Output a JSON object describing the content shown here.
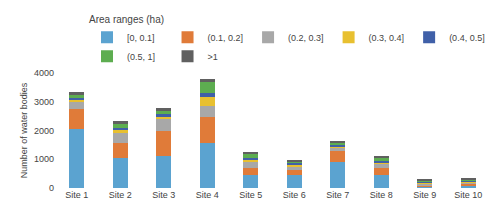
{
  "chart_data": {
    "type": "bar",
    "stacked": true,
    "categories": [
      "Site 1",
      "Site 2",
      "Site 3",
      "Site 4",
      "Site 5",
      "Site 6",
      "Site 7",
      "Site 8",
      "Site 9",
      "Site 10"
    ],
    "series": [
      {
        "name": "[0, 0.1]",
        "color": "#5BA3D0",
        "values": [
          2050,
          1060,
          1100,
          1560,
          460,
          460,
          900,
          450,
          50,
          70
        ]
      },
      {
        "name": "(0.1, 0.2]",
        "color": "#E07B39",
        "values": [
          700,
          500,
          870,
          920,
          250,
          160,
          380,
          230,
          50,
          80
        ]
      },
      {
        "name": "(0.2, 0.3]",
        "color": "#A8A8A8",
        "values": [
          230,
          350,
          430,
          380,
          200,
          140,
          120,
          140,
          60,
          50
        ]
      },
      {
        "name": "(0.3, 0.4]",
        "color": "#E8C030",
        "values": [
          100,
          120,
          100,
          300,
          90,
          60,
          60,
          80,
          30,
          30
        ]
      },
      {
        "name": "(0.4, 0.5]",
        "color": "#4060A8",
        "values": [
          50,
          50,
          60,
          130,
          50,
          50,
          30,
          40,
          20,
          20
        ]
      },
      {
        "name": "(0.5, 1]",
        "color": "#5DAD50",
        "values": [
          120,
          130,
          120,
          380,
          130,
          60,
          100,
          120,
          50,
          40
        ]
      },
      {
        "name": ">1",
        "color": "#606060",
        "values": [
          80,
          120,
          100,
          130,
          70,
          50,
          60,
          50,
          40,
          30
        ]
      }
    ],
    "legend_title": "Area ranges (ha)",
    "legend": "upper right",
    "ylabel": "Number of water bodies",
    "ylim": [
      0,
      4000
    ],
    "yticks": [
      0,
      1000,
      2000,
      3000,
      4000
    ],
    "grid": false
  }
}
